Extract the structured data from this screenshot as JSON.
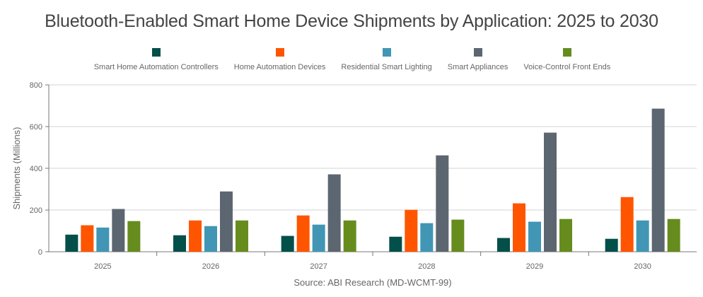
{
  "chart_data": {
    "type": "bar",
    "title": "Bluetooth-Enabled Smart Home Device Shipments by Application: 2025 to 2030",
    "xlabel": "Source: ABI Research (MD-WCMT-99)",
    "ylabel": "Shipments (Millions)",
    "ylim": [
      0,
      800
    ],
    "yticks": [
      0,
      200,
      400,
      600,
      800
    ],
    "grid": true,
    "legend_position": "top",
    "categories": [
      "2025",
      "2026",
      "2027",
      "2028",
      "2029",
      "2030"
    ],
    "series": [
      {
        "name": "Smart Home Automation Controllers",
        "color": "#034f4a",
        "values": [
          82,
          79,
          76,
          72,
          66,
          62
        ]
      },
      {
        "name": "Home Automation Devices",
        "color": "#ff5500",
        "values": [
          127,
          150,
          174,
          201,
          232,
          262
        ]
      },
      {
        "name": "Residential Smart Lighting",
        "color": "#4096b4",
        "values": [
          116,
          123,
          130,
          137,
          144,
          150
        ]
      },
      {
        "name": "Smart Appliances",
        "color": "#5c6670",
        "values": [
          205,
          289,
          371,
          462,
          571,
          686
        ]
      },
      {
        "name": "Voice-Control Front Ends",
        "color": "#668c1e",
        "values": [
          147,
          150,
          150,
          154,
          157,
          157
        ]
      }
    ]
  }
}
